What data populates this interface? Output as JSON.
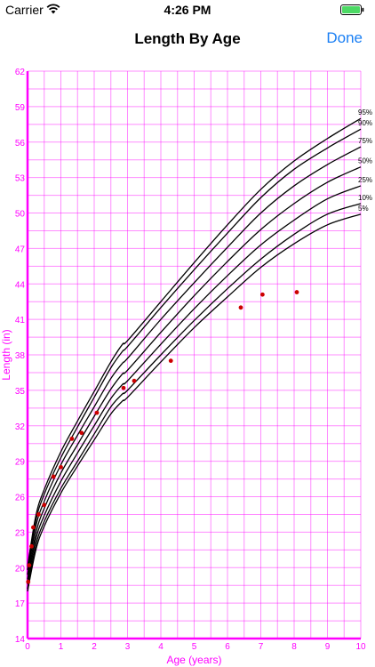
{
  "status_bar": {
    "carrier": "Carrier",
    "time": "4:26 PM",
    "icons": [
      "wifi-icon",
      "battery-icon"
    ]
  },
  "nav": {
    "title": "Length By Age",
    "done_label": "Done",
    "accent_color": "#1a7ff4"
  },
  "chart_data": {
    "type": "line",
    "xlabel": "Age (years)",
    "ylabel": "Length (in)",
    "xlim": [
      0,
      10
    ],
    "ylim": [
      14,
      62
    ],
    "x_ticks": [
      "0",
      "1",
      "2",
      "3",
      "4",
      "5",
      "6",
      "7",
      "8",
      "9",
      "10"
    ],
    "y_ticks": [
      "14",
      "17",
      "20",
      "23",
      "26",
      "29",
      "32",
      "35",
      "38",
      "41",
      "44",
      "47",
      "50",
      "53",
      "56",
      "59",
      "62"
    ],
    "grid": true,
    "axis_color": "#ff00ff",
    "curve_color": "#000000",
    "point_color": "#cc0000",
    "series": [
      {
        "name": "95%",
        "x": [
          0,
          0.25,
          0.5,
          1,
          1.5,
          2,
          2.5,
          2.85,
          3,
          4,
          5,
          6,
          7,
          8,
          9,
          10
        ],
        "y": [
          20.1,
          24.4,
          26.6,
          29.8,
          32.4,
          34.9,
          37.4,
          38.9,
          39.2,
          42.5,
          45.8,
          49.0,
          52.0,
          54.4,
          56.3,
          58.0
        ]
      },
      {
        "name": "90%",
        "x": [
          0,
          0.25,
          0.5,
          1,
          1.5,
          2,
          2.5,
          2.85,
          3,
          4,
          5,
          6,
          7,
          8,
          9,
          10
        ],
        "y": [
          19.8,
          24.0,
          26.2,
          29.3,
          31.9,
          34.4,
          36.9,
          38.3,
          38.7,
          42.0,
          45.2,
          48.3,
          51.3,
          53.7,
          55.5,
          57.1
        ]
      },
      {
        "name": "75%",
        "x": [
          0,
          0.25,
          0.5,
          1,
          1.5,
          2,
          2.5,
          2.85,
          3,
          4,
          5,
          6,
          7,
          8,
          9,
          10
        ],
        "y": [
          19.4,
          23.5,
          25.6,
          28.7,
          31.2,
          33.6,
          36.0,
          37.3,
          37.7,
          41.0,
          44.1,
          47.1,
          50.0,
          52.3,
          54.1,
          55.6
        ]
      },
      {
        "name": "50%",
        "x": [
          0,
          0.25,
          0.5,
          1,
          1.5,
          2,
          2.5,
          2.85,
          3,
          4,
          5,
          6,
          7,
          8,
          9,
          10
        ],
        "y": [
          19.0,
          22.9,
          25.0,
          28.0,
          30.4,
          32.8,
          35.1,
          36.4,
          36.7,
          39.9,
          43.0,
          45.9,
          48.6,
          50.8,
          52.6,
          53.9
        ]
      },
      {
        "name": "25%",
        "x": [
          0,
          0.25,
          0.5,
          1,
          1.5,
          2,
          2.5,
          2.85,
          3,
          4,
          5,
          6,
          7,
          8,
          9,
          10
        ],
        "y": [
          18.6,
          22.4,
          24.4,
          27.3,
          29.7,
          32.0,
          34.3,
          35.5,
          35.8,
          38.9,
          41.9,
          44.7,
          47.3,
          49.4,
          51.2,
          52.3
        ]
      },
      {
        "name": "10%",
        "x": [
          0,
          0.25,
          0.5,
          1,
          1.5,
          2,
          2.5,
          2.85,
          3,
          4,
          5,
          6,
          7,
          8,
          9,
          10
        ],
        "y": [
          18.2,
          21.9,
          23.9,
          26.7,
          29.0,
          31.3,
          33.6,
          34.7,
          35.0,
          38.0,
          40.9,
          43.6,
          46.1,
          48.2,
          49.9,
          50.8
        ]
      },
      {
        "name": "5%",
        "x": [
          0,
          0.25,
          0.5,
          1,
          1.5,
          2,
          2.5,
          2.85,
          3,
          4,
          5,
          6,
          7,
          8,
          9,
          10
        ],
        "y": [
          18.0,
          21.5,
          23.5,
          26.3,
          28.6,
          30.8,
          33.0,
          34.1,
          34.4,
          37.4,
          40.3,
          42.9,
          45.4,
          47.4,
          49.0,
          49.9
        ]
      }
    ],
    "measurements": {
      "x": [
        0.02,
        0.05,
        0.12,
        0.17,
        0.33,
        0.5,
        0.78,
        1.0,
        1.33,
        1.62,
        2.08,
        2.88,
        3.2,
        4.3,
        6.4,
        7.05,
        8.08
      ],
      "y": [
        18.8,
        20.2,
        21.8,
        23.4,
        24.5,
        25.3,
        27.7,
        28.5,
        30.9,
        31.4,
        33.1,
        35.2,
        35.8,
        37.5,
        42.0,
        43.1,
        43.3
      ]
    }
  }
}
